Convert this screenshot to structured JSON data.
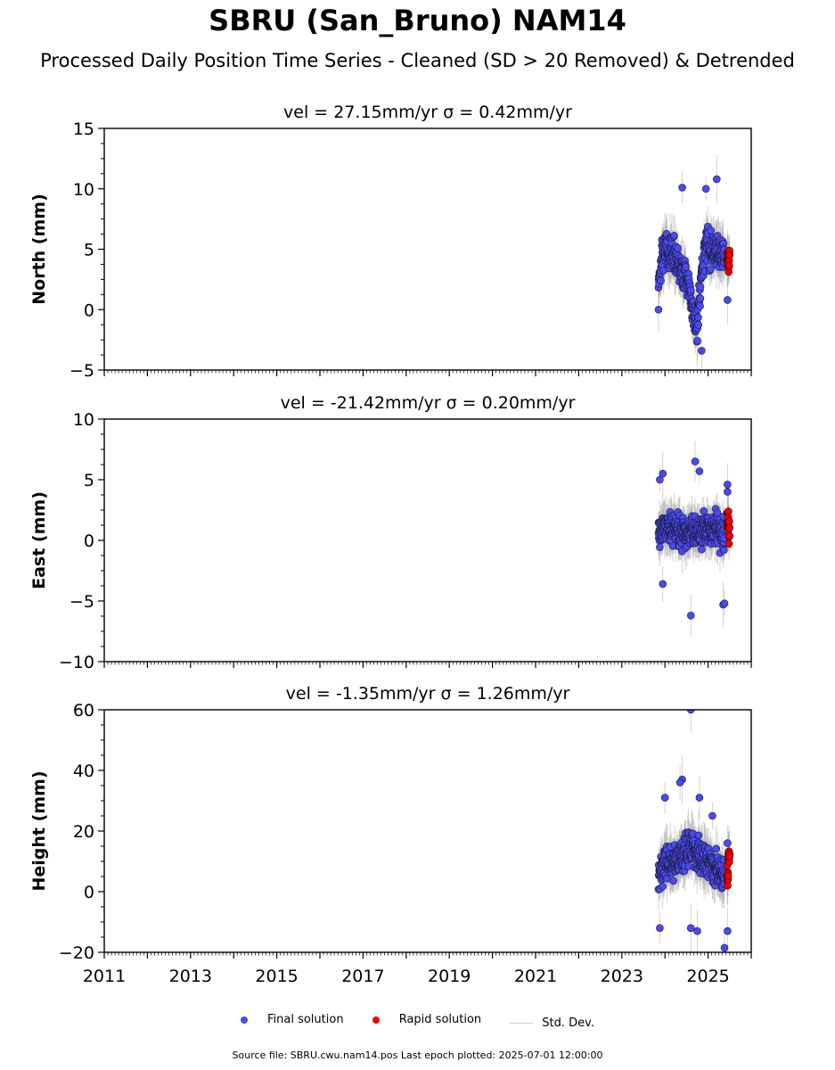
{
  "page": {
    "title": "SBRU (San_Bruno) NAM14",
    "subtitle": "Processed Daily Position Time Series - Cleaned (SD > 20 Removed) & Detrended"
  },
  "legend": {
    "final_label": "Final solution",
    "rapid_label": "Rapid solution",
    "std_label": "Std. Dev."
  },
  "footer": {
    "text": "Source file: SBRU.cwu.nam14.pos  Last epoch plotted: 2025-07-01 12:00:00"
  },
  "colors": {
    "final": "#4a4af0",
    "rapid": "#ee0000",
    "std": "#b0b0b0"
  },
  "chart_data": [
    {
      "type": "scatter",
      "title": "vel = 27.15mm/yr   σ = 0.42mm/yr",
      "ylabel": "North (mm)",
      "ylim": [
        -5,
        15
      ],
      "yticks": [
        -5,
        0,
        5,
        10,
        15
      ],
      "ytick_labels": [
        "−5",
        "0",
        "5",
        "10",
        "15"
      ],
      "xlim": [
        2011,
        2026
      ],
      "final_window": [
        2023.85,
        2025.38
      ],
      "rapid_window": [
        2025.38,
        2025.5
      ],
      "spread": 1.6,
      "series": [
        {
          "name": "Final solution",
          "x": [
            2023.85,
            2023.9,
            2023.95,
            2024.0,
            2024.05,
            2024.1,
            2024.15,
            2024.2,
            2024.25,
            2024.3,
            2024.35,
            2024.4,
            2024.45,
            2024.5,
            2024.55,
            2024.6,
            2024.65,
            2024.7,
            2024.75,
            2024.8,
            2024.85,
            2024.9,
            2024.95,
            2025.0,
            2025.05,
            2025.1,
            2025.15,
            2025.2,
            2025.25,
            2025.3,
            2025.35
          ],
          "y": [
            2.5,
            3.5,
            5.0,
            5.5,
            5.0,
            4.5,
            4.8,
            5.0,
            4.5,
            4.0,
            3.5,
            3.0,
            3.0,
            2.8,
            2.0,
            1.0,
            0.0,
            -1.0,
            -1.5,
            1.0,
            3.0,
            4.5,
            5.5,
            5.5,
            5.0,
            5.0,
            5.2,
            5.0,
            4.8,
            5.0,
            4.5
          ]
        },
        {
          "name": "Rapid solution",
          "x": [
            2025.42,
            2025.44,
            2025.46,
            2025.48
          ],
          "y": [
            3.5,
            4.0,
            4.5,
            4.0
          ]
        }
      ],
      "outliers": [
        [
          2024.4,
          10.1
        ],
        [
          2024.95,
          10.0
        ],
        [
          2025.2,
          10.8
        ],
        [
          2024.85,
          -3.4
        ],
        [
          2023.85,
          0.0
        ],
        [
          2025.45,
          0.8
        ]
      ]
    },
    {
      "type": "scatter",
      "title": "vel = -21.42mm/yr   σ = 0.20mm/yr",
      "ylabel": "East (mm)",
      "ylim": [
        -10,
        10
      ],
      "yticks": [
        -10,
        -5,
        0,
        5,
        10
      ],
      "ytick_labels": [
        "−10",
        "−5",
        "0",
        "5",
        "10"
      ],
      "xlim": [
        2011,
        2026
      ],
      "final_window": [
        2023.85,
        2025.38
      ],
      "rapid_window": [
        2025.38,
        2025.5
      ],
      "spread": 1.5,
      "series": [
        {
          "name": "Final solution",
          "x": [
            2023.85,
            2024.0,
            2024.2,
            2024.4,
            2024.6,
            2024.8,
            2025.0,
            2025.2,
            2025.35
          ],
          "y": [
            0.5,
            1.0,
            1.0,
            0.8,
            0.5,
            0.8,
            1.0,
            1.0,
            0.5
          ]
        },
        {
          "name": "Rapid solution",
          "x": [
            2025.42,
            2025.46,
            2025.48
          ],
          "y": [
            1.2,
            1.5,
            1.0
          ]
        }
      ],
      "outliers": [
        [
          2023.88,
          5.0
        ],
        [
          2023.95,
          5.5
        ],
        [
          2024.7,
          6.5
        ],
        [
          2024.8,
          5.7
        ],
        [
          2024.6,
          -6.2
        ],
        [
          2023.95,
          -3.6
        ],
        [
          2025.35,
          -5.3
        ],
        [
          2025.38,
          -5.2
        ],
        [
          2025.45,
          4.6
        ],
        [
          2025.45,
          4.0
        ]
      ]
    },
    {
      "type": "scatter",
      "title": "vel = -1.35mm/yr   σ = 1.26mm/yr",
      "ylabel": "Height (mm)",
      "ylim": [
        -20,
        60
      ],
      "yticks": [
        -20,
        0,
        20,
        40,
        60
      ],
      "ytick_labels": [
        "−20",
        "0",
        "20",
        "40",
        "60"
      ],
      "xlim": [
        2011,
        2026
      ],
      "final_window": [
        2023.85,
        2025.38
      ],
      "rapid_window": [
        2025.38,
        2025.5
      ],
      "spread": 6.5,
      "series": [
        {
          "name": "Final solution",
          "x": [
            2023.85,
            2024.0,
            2024.2,
            2024.4,
            2024.6,
            2024.8,
            2025.0,
            2025.2,
            2025.35
          ],
          "y": [
            5,
            10,
            10,
            12,
            15,
            12,
            10,
            8,
            5
          ]
        },
        {
          "name": "Rapid solution",
          "x": [
            2025.42,
            2025.46,
            2025.48
          ],
          "y": [
            8,
            6,
            10
          ]
        }
      ],
      "outliers": [
        [
          2024.6,
          60
        ],
        [
          2024.4,
          37
        ],
        [
          2024.35,
          36
        ],
        [
          2024.0,
          31
        ],
        [
          2024.8,
          31
        ],
        [
          2025.1,
          25
        ],
        [
          2023.88,
          -12
        ],
        [
          2024.6,
          -12
        ],
        [
          2024.75,
          -13
        ],
        [
          2025.38,
          -18.5
        ],
        [
          2025.45,
          -13
        ],
        [
          2025.45,
          16
        ]
      ]
    }
  ],
  "xaxis": {
    "ticks": [
      2011,
      2013,
      2015,
      2017,
      2019,
      2021,
      2023,
      2025
    ],
    "tick_labels": [
      "2011",
      "2013",
      "2015",
      "2017",
      "2019",
      "2021",
      "2023",
      "2025"
    ]
  }
}
